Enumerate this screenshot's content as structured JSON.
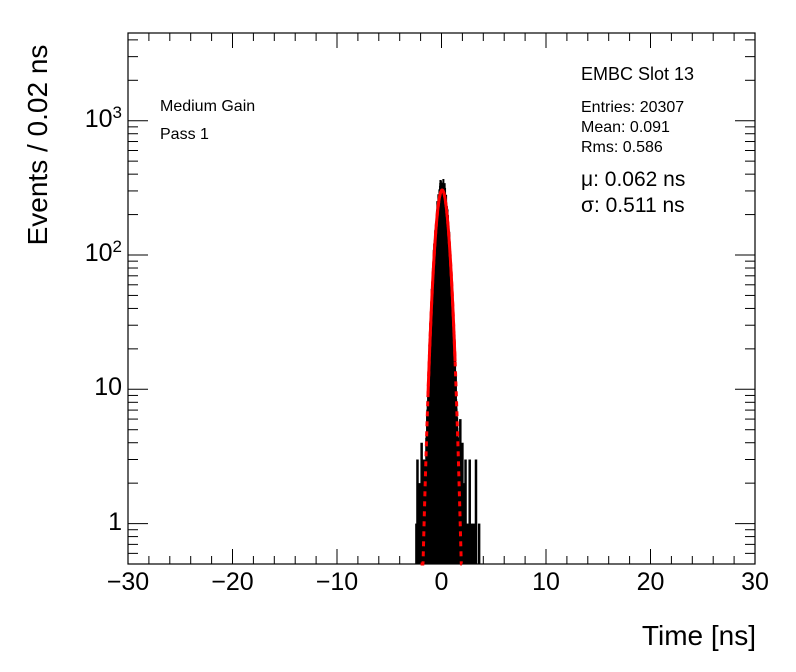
{
  "chart_data": {
    "type": "histogram",
    "xlabel": "Time [ns]",
    "ylabel": "Events / 0.02 ns",
    "xlim": [
      -30,
      30
    ],
    "ylim": [
      0.5,
      4500
    ],
    "y_scale": "log",
    "x_ticks": [
      -30,
      -20,
      -10,
      0,
      10,
      20,
      30
    ],
    "x_tick_labels": [
      "−30",
      "−20",
      "−10",
      "0",
      "10",
      "20",
      "30"
    ],
    "y_ticks": [
      1,
      10,
      100,
      1000
    ],
    "y_tick_labels": [
      {
        "base": "1",
        "exp": ""
      },
      {
        "base": "10",
        "exp": ""
      },
      {
        "base": "10",
        "exp": "2"
      },
      {
        "base": "10",
        "exp": "3"
      }
    ],
    "grid": false,
    "annotations": {
      "left": [
        "Medium Gain",
        "Pass 1"
      ],
      "title": "EMBC Slot 13",
      "stats": [
        "Entries: 20307",
        "Mean: 0.091",
        "Rms: 0.586"
      ],
      "fit": [
        "μ: 0.062 ns",
        "σ: 0.511 ns"
      ]
    },
    "series": [
      {
        "style": "histogram",
        "color": "#000000",
        "bin_width": 0.02,
        "gaussian_core": {
          "amplitude": 320,
          "mean": 0.06,
          "sigma": 0.51
        },
        "tail_points": [
          {
            "x": -2.4,
            "y": 1
          },
          {
            "x": -2.3,
            "y": 3
          },
          {
            "x": -2.2,
            "y": 1
          },
          {
            "x": -2.1,
            "y": 2
          },
          {
            "x": -2.0,
            "y": 1
          },
          {
            "x": -1.9,
            "y": 4
          },
          {
            "x": -1.8,
            "y": 2
          },
          {
            "x": -1.7,
            "y": 3
          },
          {
            "x": 1.7,
            "y": 4
          },
          {
            "x": 1.8,
            "y": 6
          },
          {
            "x": 1.9,
            "y": 3
          },
          {
            "x": 2.0,
            "y": 4
          },
          {
            "x": 2.1,
            "y": 2
          },
          {
            "x": 2.3,
            "y": 3
          },
          {
            "x": 2.5,
            "y": 1
          },
          {
            "x": 2.7,
            "y": 3
          },
          {
            "x": 2.9,
            "y": 1
          },
          {
            "x": 3.1,
            "y": 1
          },
          {
            "x": 3.3,
            "y": 3
          },
          {
            "x": 3.6,
            "y": 1
          }
        ]
      },
      {
        "style": "fit-solid",
        "color": "#ff0000",
        "function": "gaussian",
        "amplitude": 305,
        "mean": 0.062,
        "sigma": 0.511,
        "x_range": [
          -1.3,
          1.3
        ]
      },
      {
        "style": "fit-dashed",
        "color": "#ff0000",
        "function": "gaussian",
        "amplitude": 305,
        "mean": 0.062,
        "sigma": 0.511,
        "x_range": [
          -2.0,
          1.95
        ]
      }
    ]
  }
}
